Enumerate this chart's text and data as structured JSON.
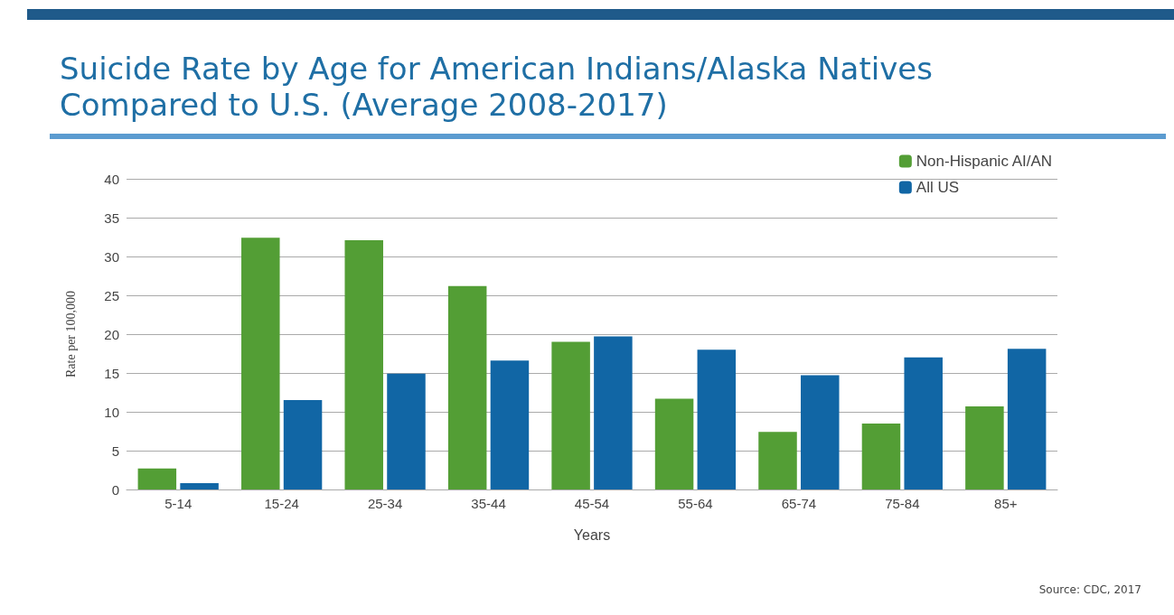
{
  "chart_data": {
    "type": "bar",
    "title": "Suicide Rate by Age for American Indians/Alaska Natives Compared to U.S. (Average 2008-2017)",
    "xlabel": "Years",
    "ylabel": "Rate per 100,000",
    "categories": [
      "5-14",
      "15-24",
      "25-34",
      "35-44",
      "45-54",
      "55-64",
      "65-74",
      "75-84",
      "85+"
    ],
    "series": [
      {
        "name": "Non-Hispanic AI/AN",
        "color": "#539e35",
        "values": [
          2.7,
          32.4,
          32.1,
          26.2,
          19.0,
          11.7,
          7.4,
          8.5,
          10.7
        ]
      },
      {
        "name": "All US",
        "color": "#1166a5",
        "values": [
          0.8,
          11.5,
          14.9,
          16.6,
          19.7,
          18.0,
          14.7,
          17.0,
          18.1
        ]
      }
    ],
    "ylim": [
      0,
      40
    ],
    "yticks": [
      0,
      5,
      10,
      15,
      20,
      25,
      30,
      35,
      40
    ],
    "grid": "y",
    "legend": "top right",
    "annotations": [
      "Source: CDC, 2017"
    ]
  }
}
